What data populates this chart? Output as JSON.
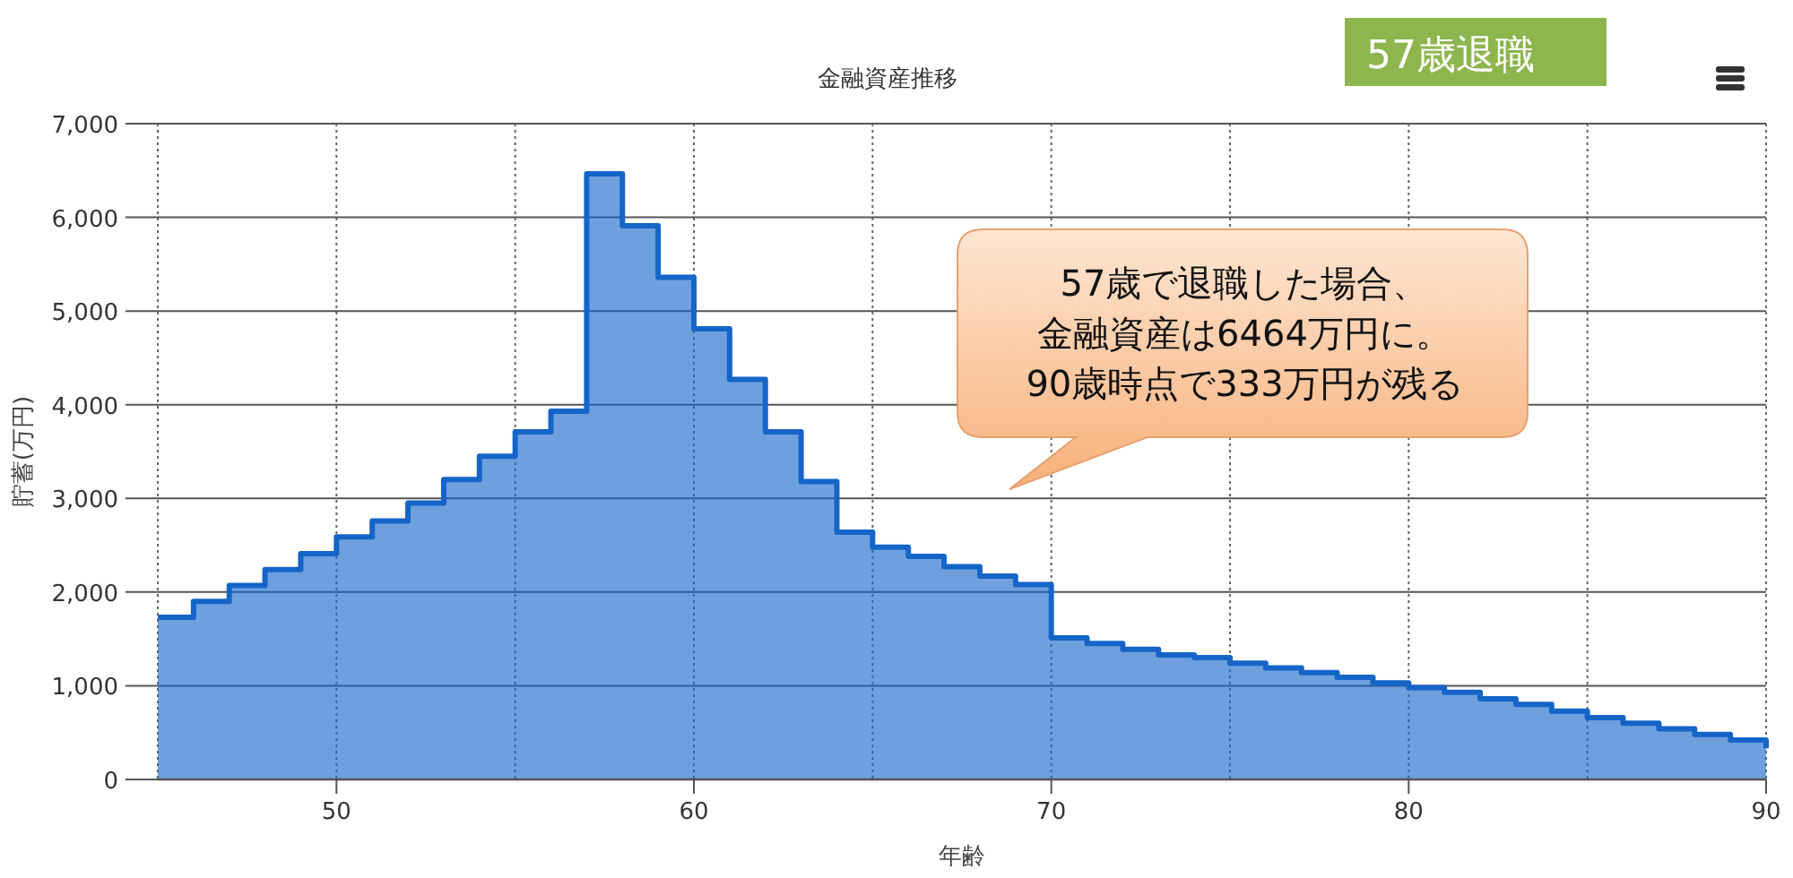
{
  "chart_data": {
    "type": "area",
    "title": "金融資産推移",
    "xlabel": "年齢",
    "ylabel": "貯蓄(万円)",
    "annotations": [
      "57歳退職",
      "57歳で退職した場合、",
      "金融資産は6464万円に。",
      "90歳時点で333万円が残る"
    ],
    "x": [
      45,
      46,
      46,
      47,
      47,
      48,
      48,
      49,
      49,
      50,
      50,
      51,
      51,
      52,
      52,
      53,
      53,
      54,
      54,
      55,
      55,
      56,
      56,
      57,
      57,
      58,
      58,
      59,
      59,
      60,
      60,
      61,
      61,
      62,
      62,
      63,
      63,
      64,
      64,
      65,
      65,
      66,
      66,
      67,
      67,
      68,
      68,
      69,
      69,
      70,
      70,
      71,
      71,
      72,
      72,
      73,
      73,
      74,
      74,
      75,
      75,
      76,
      76,
      77,
      77,
      78,
      78,
      79,
      79,
      80,
      80,
      81,
      81,
      82,
      82,
      83,
      83,
      84,
      84,
      85,
      85,
      86,
      86,
      87,
      87,
      88,
      88,
      89,
      89,
      90,
      90
    ],
    "series": [
      {
        "color": "#1565c8",
        "values": [
          1730,
          1730,
          1900,
          1900,
          2070,
          2070,
          2240,
          2240,
          2410,
          2410,
          2590,
          2590,
          2760,
          2760,
          2950,
          2950,
          3200,
          3200,
          3450,
          3450,
          3710,
          3710,
          3930,
          3930,
          6464,
          6464,
          5910,
          5910,
          5360,
          5360,
          4810,
          4810,
          4270,
          4270,
          3710,
          3710,
          3180,
          3180,
          2640,
          2640,
          2480,
          2480,
          2380,
          2380,
          2270,
          2270,
          2170,
          2170,
          2080,
          2080,
          1510,
          1510,
          1450,
          1450,
          1390,
          1390,
          1330,
          1330,
          1300,
          1300,
          1240,
          1240,
          1190,
          1190,
          1140,
          1140,
          1090,
          1090,
          1030,
          1030,
          980,
          980,
          930,
          930,
          860,
          860,
          800,
          800,
          730,
          730,
          660,
          660,
          600,
          600,
          540,
          540,
          480,
          480,
          420,
          420,
          333
        ]
      }
    ],
    "xlim": [
      45,
      90
    ],
    "ylim": [
      0,
      7000
    ],
    "xticks": [
      {
        "value": 45,
        "label": null
      },
      50,
      {
        "value": 55,
        "label": null
      },
      60,
      {
        "value": 65,
        "label": null
      },
      70,
      {
        "value": 75,
        "label": null
      },
      80,
      {
        "value": 85,
        "label": null
      },
      90
    ],
    "yticks": [
      0,
      {
        "value": 1000,
        "label": "1,000"
      },
      {
        "value": 2000,
        "label": "2,000"
      },
      {
        "value": 3000,
        "label": "3,000"
      },
      {
        "value": 4000,
        "label": "4,000"
      },
      {
        "value": 5000,
        "label": "5,000"
      },
      {
        "value": 6000,
        "label": "6,000"
      },
      {
        "value": 7000,
        "label": "7,000"
      }
    ],
    "grid": true
  }
}
